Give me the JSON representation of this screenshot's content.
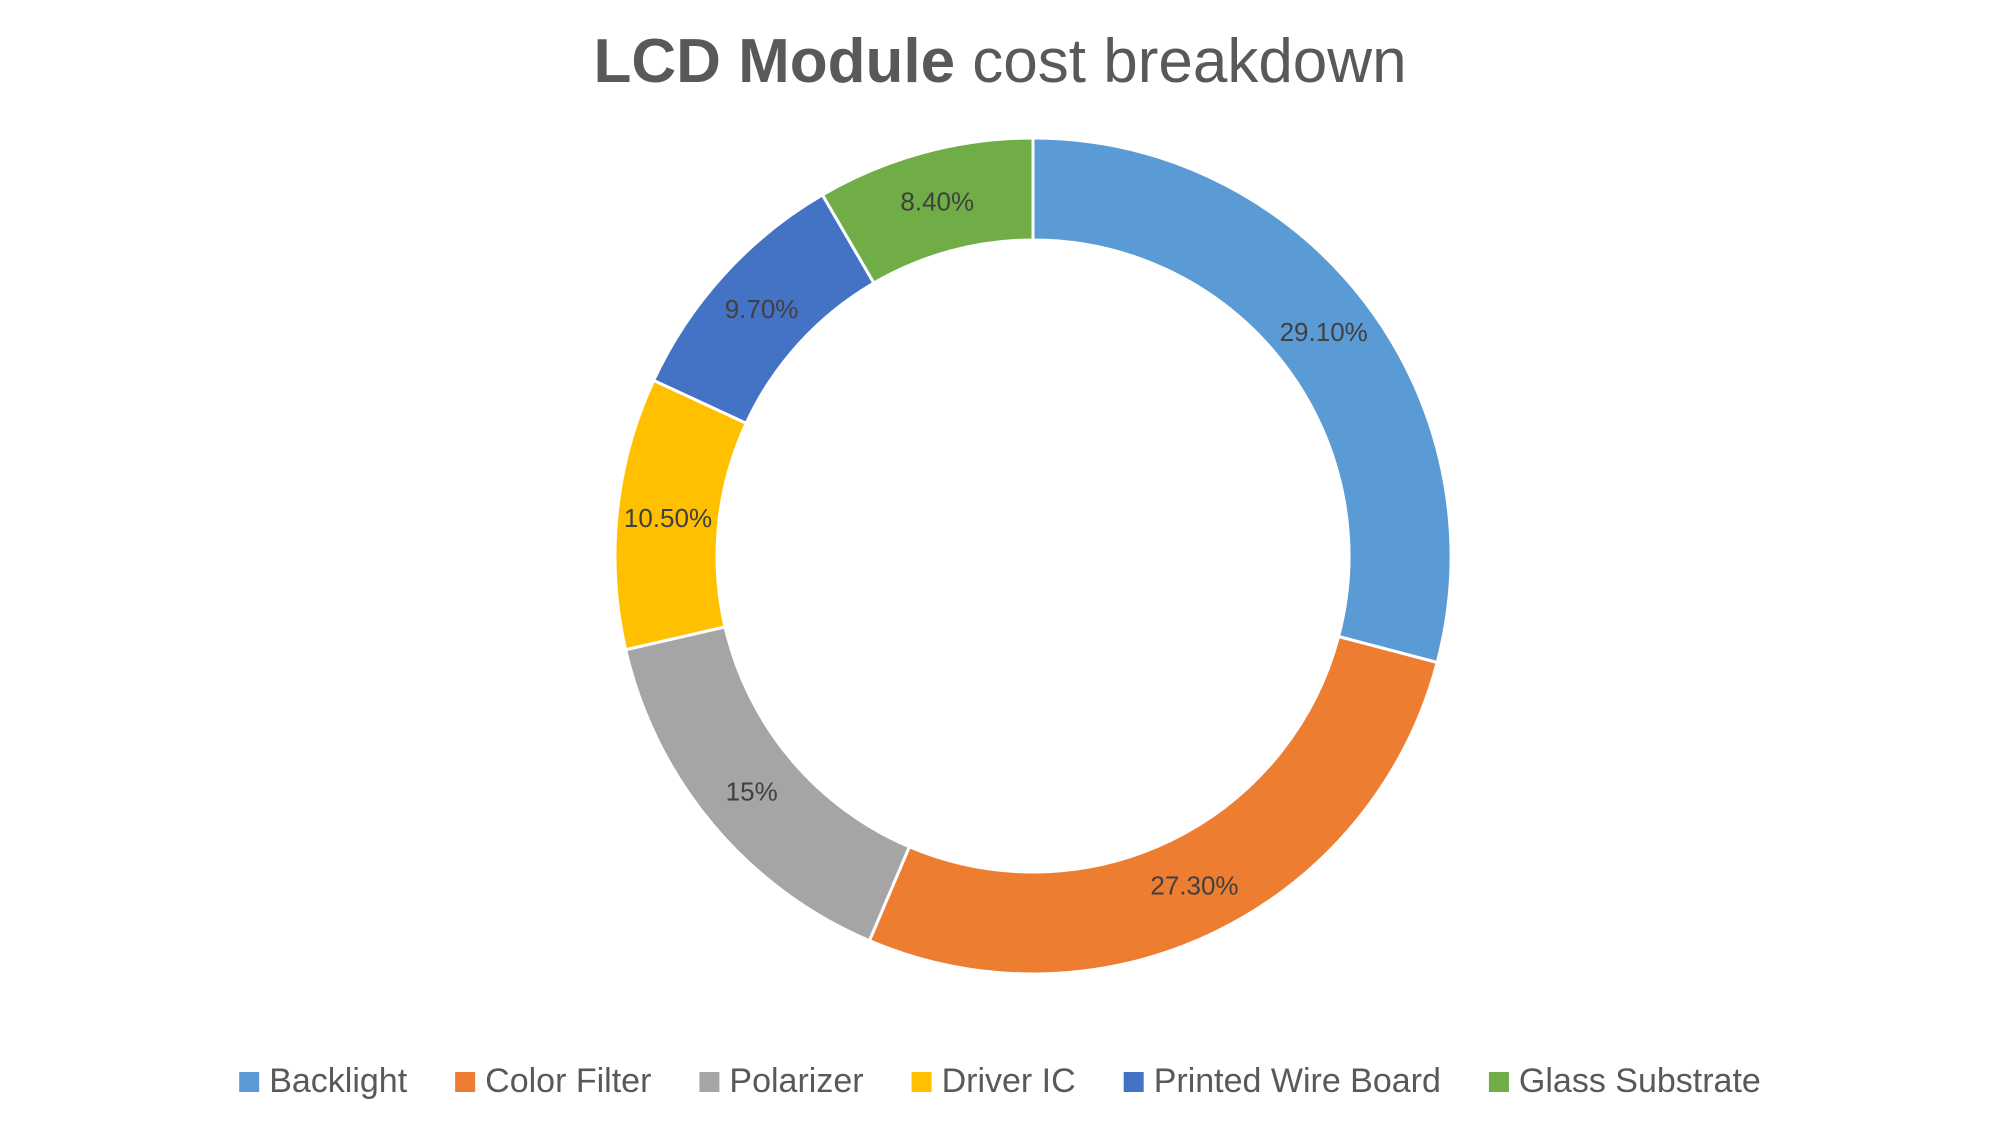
{
  "title": {
    "bold": "LCD Module",
    "rest": " cost breakdown"
  },
  "chart_data": {
    "type": "pie",
    "subtype": "doughnut",
    "title": "LCD Module cost breakdown",
    "legend_position": "bottom",
    "slices": [
      {
        "label": "Backlight",
        "value": 29.1,
        "display": "29.10%",
        "color": "#5B9BD5"
      },
      {
        "label": "Color Filter",
        "value": 27.3,
        "display": "27.30%",
        "color": "#ED7D31"
      },
      {
        "label": "Polarizer",
        "value": 15,
        "display": "15%",
        "color": "#A5A5A5"
      },
      {
        "label": "Driver IC",
        "value": 10.5,
        "display": "10.50%",
        "color": "#FFC000"
      },
      {
        "label": "Printed Wire Board",
        "value": 9.7,
        "display": "9.70%",
        "color": "#4472C4"
      },
      {
        "label": "Glass Substrate",
        "value": 8.4,
        "display": "8.40%",
        "color": "#70AD47"
      }
    ]
  }
}
